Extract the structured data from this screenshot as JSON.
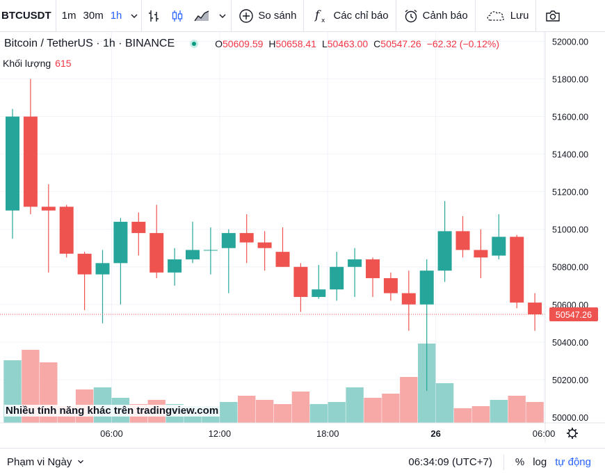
{
  "toolbar": {
    "symbol": "BTCUSDT",
    "timeframes": [
      "1m",
      "30m",
      "1h"
    ],
    "active_timeframe": "1h",
    "compare_label": "So sánh",
    "indicators_label": "Các chỉ báo",
    "alerts_label": "Cảnh báo",
    "save_label": "Lưu",
    "icons": [
      "chevron-down-icon",
      "bar-style-icon",
      "candle-style-icon",
      "area-style-icon",
      "add-circle-icon",
      "fx-icon",
      "alarm-clock-icon",
      "cloud-icon",
      "camera-icon"
    ]
  },
  "legend": {
    "title": "Bitcoin / TetherUS · 1h · BINANCE",
    "open_label": "O",
    "open": "50609.59",
    "high_label": "H",
    "high": "50658.41",
    "low_label": "L",
    "low": "50463.00",
    "close_label": "C",
    "close": "50547.26",
    "change": "−62.32 (−0.12%)"
  },
  "volume_legend": {
    "label": "Khối lượng",
    "value": "615"
  },
  "promo_text": "Nhiều tính năng khác trên tradingview.com",
  "last_price_label": "50547.26",
  "bottom": {
    "range_label": "Phạm vi Ngày",
    "clock": "06:34:09 (UTC+7)",
    "percent_label": "%",
    "log_label": "log",
    "auto_label": "tự động"
  },
  "colors": {
    "up": "#26a69a",
    "down": "#ef5350",
    "up_volume": "#92d2cc",
    "down_volume": "#f7a9a7",
    "accent": "#2962ff"
  },
  "chart_data": {
    "type": "candlestick",
    "y_ticks": [
      "52000.00",
      "51800.00",
      "51600.00",
      "51400.00",
      "51200.00",
      "51000.00",
      "50800.00",
      "50600.00",
      "50400.00",
      "50200.00",
      "50000.00"
    ],
    "ylim": [
      49970,
      52050
    ],
    "x_ticks": [
      {
        "label": "06:00",
        "index": 5.5
      },
      {
        "label": "12:00",
        "index": 11.5
      },
      {
        "label": "18:00",
        "index": 17.5
      },
      {
        "label": "26",
        "index": 23.5,
        "bold": true
      },
      {
        "label": "06:00",
        "index": 29.5
      }
    ],
    "candles": [
      {
        "o": 51100,
        "h": 51640,
        "l": 50950,
        "c": 51600,
        "v": 0.3
      },
      {
        "o": 51600,
        "h": 51800,
        "l": 51080,
        "c": 51120,
        "v": 0.35
      },
      {
        "o": 51120,
        "h": 51240,
        "l": 50770,
        "c": 51100,
        "v": 0.29
      },
      {
        "o": 51120,
        "h": 51130,
        "l": 50850,
        "c": 50870,
        "v": 0.08
      },
      {
        "o": 50870,
        "h": 50880,
        "l": 50570,
        "c": 50760,
        "v": 0.16
      },
      {
        "o": 50760,
        "h": 50890,
        "l": 50500,
        "c": 50820,
        "v": 0.17
      },
      {
        "o": 50820,
        "h": 51060,
        "l": 50600,
        "c": 51040,
        "v": 0.12
      },
      {
        "o": 51040,
        "h": 51090,
        "l": 50860,
        "c": 50980,
        "v": 0.09
      },
      {
        "o": 50980,
        "h": 51130,
        "l": 50740,
        "c": 50770,
        "v": 0.11
      },
      {
        "o": 50770,
        "h": 50900,
        "l": 50700,
        "c": 50840,
        "v": 0.09
      },
      {
        "o": 50840,
        "h": 51040,
        "l": 50820,
        "c": 50890,
        "v": 0.08
      },
      {
        "o": 50890,
        "h": 51010,
        "l": 50760,
        "c": 50890,
        "v": 0.08
      },
      {
        "o": 50900,
        "h": 51000,
        "l": 50660,
        "c": 50980,
        "v": 0.1
      },
      {
        "o": 50980,
        "h": 51080,
        "l": 50820,
        "c": 50930,
        "v": 0.13
      },
      {
        "o": 50930,
        "h": 50990,
        "l": 50780,
        "c": 50900,
        "v": 0.11
      },
      {
        "o": 50880,
        "h": 51010,
        "l": 50800,
        "c": 50800,
        "v": 0.09
      },
      {
        "o": 50800,
        "h": 50820,
        "l": 50560,
        "c": 50640,
        "v": 0.15
      },
      {
        "o": 50640,
        "h": 50810,
        "l": 50630,
        "c": 50680,
        "v": 0.09
      },
      {
        "o": 50680,
        "h": 50880,
        "l": 50620,
        "c": 50800,
        "v": 0.1
      },
      {
        "o": 50800,
        "h": 50900,
        "l": 50640,
        "c": 50840,
        "v": 0.17
      },
      {
        "o": 50840,
        "h": 50850,
        "l": 50640,
        "c": 50740,
        "v": 0.12
      },
      {
        "o": 50740,
        "h": 50770,
        "l": 50620,
        "c": 50660,
        "v": 0.14
      },
      {
        "o": 50660,
        "h": 50780,
        "l": 50460,
        "c": 50600,
        "v": 0.22
      },
      {
        "o": 50600,
        "h": 50840,
        "l": 50140,
        "c": 50780,
        "v": 0.38
      },
      {
        "o": 50780,
        "h": 51150,
        "l": 50720,
        "c": 50990,
        "v": 0.19
      },
      {
        "o": 50990,
        "h": 51070,
        "l": 50850,
        "c": 50890,
        "v": 0.07
      },
      {
        "o": 50890,
        "h": 51000,
        "l": 50740,
        "c": 50850,
        "v": 0.08
      },
      {
        "o": 50860,
        "h": 51080,
        "l": 50840,
        "c": 50960,
        "v": 0.11
      },
      {
        "o": 50960,
        "h": 50970,
        "l": 50580,
        "c": 50610,
        "v": 0.13
      },
      {
        "o": 50610,
        "h": 50660,
        "l": 50460,
        "c": 50547.26,
        "v": 0.1
      }
    ]
  }
}
